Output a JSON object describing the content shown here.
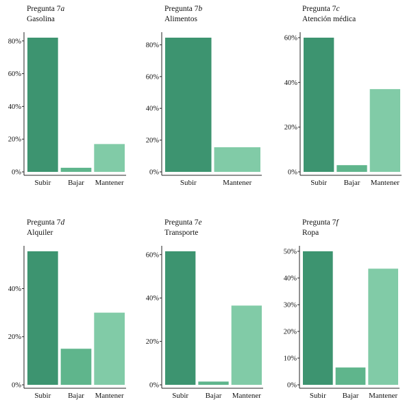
{
  "colors": {
    "subir": "#3d9470",
    "bajar": "#5fb58c",
    "mantener": "#81cba7",
    "axis": "#222222"
  },
  "chart_data": [
    {
      "type": "bar",
      "question": "Pregunta",
      "number": "7",
      "letter": "a",
      "title": "Gasolina",
      "categories": [
        "Subir",
        "Bajar",
        "Mantener"
      ],
      "values": [
        82,
        2.5,
        17
      ],
      "ylim": [
        0,
        82
      ],
      "yticks": [
        0,
        20,
        40,
        60,
        80
      ],
      "ytick_labels": [
        "0%",
        "20%",
        "40%",
        "60%",
        "80%"
      ]
    },
    {
      "type": "bar",
      "question": "Pregunta",
      "number": "7",
      "letter": "b",
      "title": "Alimentos",
      "categories": [
        "Subir",
        "Mantener"
      ],
      "values": [
        84.5,
        15.5
      ],
      "ylim": [
        0,
        84.5
      ],
      "yticks": [
        0,
        20,
        40,
        60,
        80
      ],
      "ytick_labels": [
        "0%",
        "20%",
        "40%",
        "60%",
        "80%"
      ]
    },
    {
      "type": "bar",
      "question": "Pregunta",
      "number": "7",
      "letter": "c",
      "title": "Atención médica",
      "categories": [
        "Subir",
        "Bajar",
        "Mantener"
      ],
      "values": [
        60,
        3,
        37
      ],
      "ylim": [
        0,
        60
      ],
      "yticks": [
        0,
        20,
        40,
        60
      ],
      "ytick_labels": [
        "0%",
        "20%",
        "40%",
        "60%"
      ]
    },
    {
      "type": "bar",
      "question": "Pregunta",
      "number": "7",
      "letter": "d",
      "title": "Alquiler",
      "categories": [
        "Subir",
        "Bajar",
        "Mantener"
      ],
      "values": [
        55.5,
        15,
        30
      ],
      "ylim": [
        0,
        55.5
      ],
      "yticks": [
        0,
        20,
        40
      ],
      "ytick_labels": [
        "0%",
        "20%",
        "40%"
      ]
    },
    {
      "type": "bar",
      "question": "Pregunta",
      "number": "7",
      "letter": "e",
      "title": "Transporte",
      "categories": [
        "Subir",
        "Bajar",
        "Mantener"
      ],
      "values": [
        61.5,
        1.5,
        36.5
      ],
      "ylim": [
        0,
        61.5
      ],
      "yticks": [
        0,
        20,
        40,
        60
      ],
      "ytick_labels": [
        "0%",
        "20%",
        "40%",
        "60%"
      ]
    },
    {
      "type": "bar",
      "question": "Pregunta",
      "number": "7",
      "letter": "f",
      "title": "Ropa",
      "categories": [
        "Subir",
        "Bajar",
        "Mantener"
      ],
      "values": [
        50,
        6.5,
        43.5
      ],
      "ylim": [
        0,
        50
      ],
      "yticks": [
        0,
        10,
        20,
        30,
        40,
        50
      ],
      "ytick_labels": [
        "0%",
        "10%",
        "20%",
        "30%",
        "40%",
        "50%"
      ]
    }
  ]
}
